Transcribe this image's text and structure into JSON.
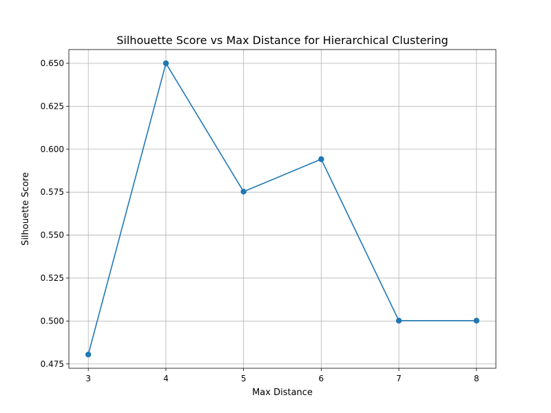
{
  "chart_data": {
    "type": "line",
    "title": "Silhouette Score vs Max Distance for Hierarchical Clustering",
    "xlabel": "Max Distance",
    "ylabel": "Silhouette Score",
    "x": [
      3,
      4,
      5,
      6,
      7,
      8
    ],
    "series": [
      {
        "values": [
          0.4805,
          0.65,
          0.5753,
          0.5942,
          0.5002,
          0.5002
        ],
        "color": "#1f77b4",
        "marker": "circle"
      }
    ],
    "xlim": [
      2.75,
      8.25
    ],
    "ylim": [
      0.4725,
      0.658
    ],
    "xticks": [
      3,
      4,
      5,
      6,
      7,
      8
    ],
    "yticks": [
      0.475,
      0.5,
      0.525,
      0.55,
      0.575,
      0.6,
      0.625,
      0.65
    ],
    "ytick_labels": [
      "0.475",
      "0.500",
      "0.525",
      "0.550",
      "0.575",
      "0.600",
      "0.625",
      "0.650"
    ],
    "grid": true
  }
}
